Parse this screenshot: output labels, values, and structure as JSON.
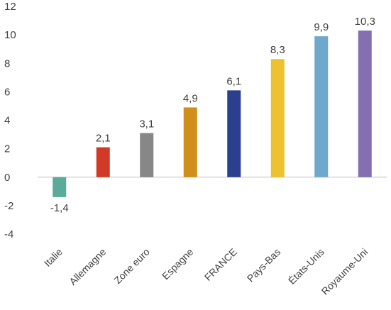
{
  "chart_data": {
    "type": "bar",
    "categories": [
      "Italie",
      "Allemagne",
      "Zone euro",
      "Espagne",
      "FRANCE",
      "Pays-Bas",
      "États-Unis",
      "Royaume-Uni"
    ],
    "values": [
      -1.4,
      2.1,
      3.1,
      4.9,
      6.1,
      8.3,
      9.9,
      10.3
    ],
    "data_labels": [
      "-1,4",
      "2,1",
      "3,1",
      "4,9",
      "6,1",
      "8,3",
      "9,9",
      "10,3"
    ],
    "bar_colors": [
      "#5aab9b",
      "#d13a27",
      "#878787",
      "#d08f1a",
      "#2b3f91",
      "#eec22f",
      "#6fa8cd",
      "#8470b0"
    ],
    "ylim": [
      -4,
      12
    ],
    "yticks": [
      -4,
      -2,
      0,
      2,
      4,
      6,
      8,
      10,
      12
    ],
    "title": "",
    "xlabel": "",
    "ylabel": "",
    "grid": false,
    "axis_color": "#bfbfbf"
  }
}
